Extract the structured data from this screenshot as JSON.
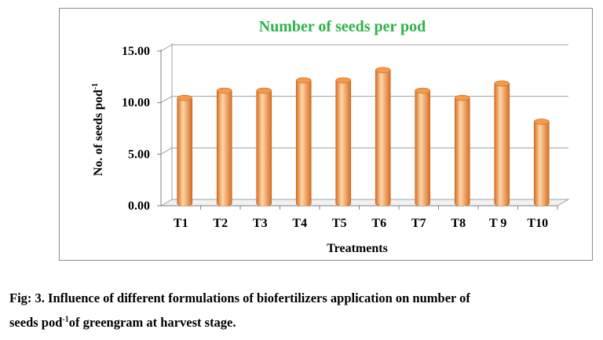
{
  "chart_data": {
    "type": "bar",
    "title": "Number of seeds per pod",
    "title_color": "#2db34a",
    "xlabel": "Treatments",
    "ylabel": "No. of seeds pod",
    "ylabel_superscript": "-1",
    "categories": [
      "T1",
      "T2",
      "T3",
      "T4",
      "T5",
      "T6",
      "T7",
      "T8",
      "T 9",
      "T10"
    ],
    "values": [
      10.3,
      11.0,
      11.0,
      12.0,
      12.0,
      13.0,
      11.0,
      10.3,
      11.7,
      8.0
    ],
    "ylim": [
      0,
      15
    ],
    "yticks": [
      "0.00",
      "5.00",
      "10.00",
      "15.00"
    ],
    "grid": true,
    "bar_color": "#f59a4b",
    "bar_light": "#ffd7a8",
    "bar_dark": "#d86e24"
  },
  "caption": {
    "line1": "Fig: 3. Influence of different formulations of biofertilizers application on number of",
    "line2_prefix": "seeds pod",
    "line2_sup": "-1",
    "line2_suffix": "of greengram at harvest stage."
  }
}
